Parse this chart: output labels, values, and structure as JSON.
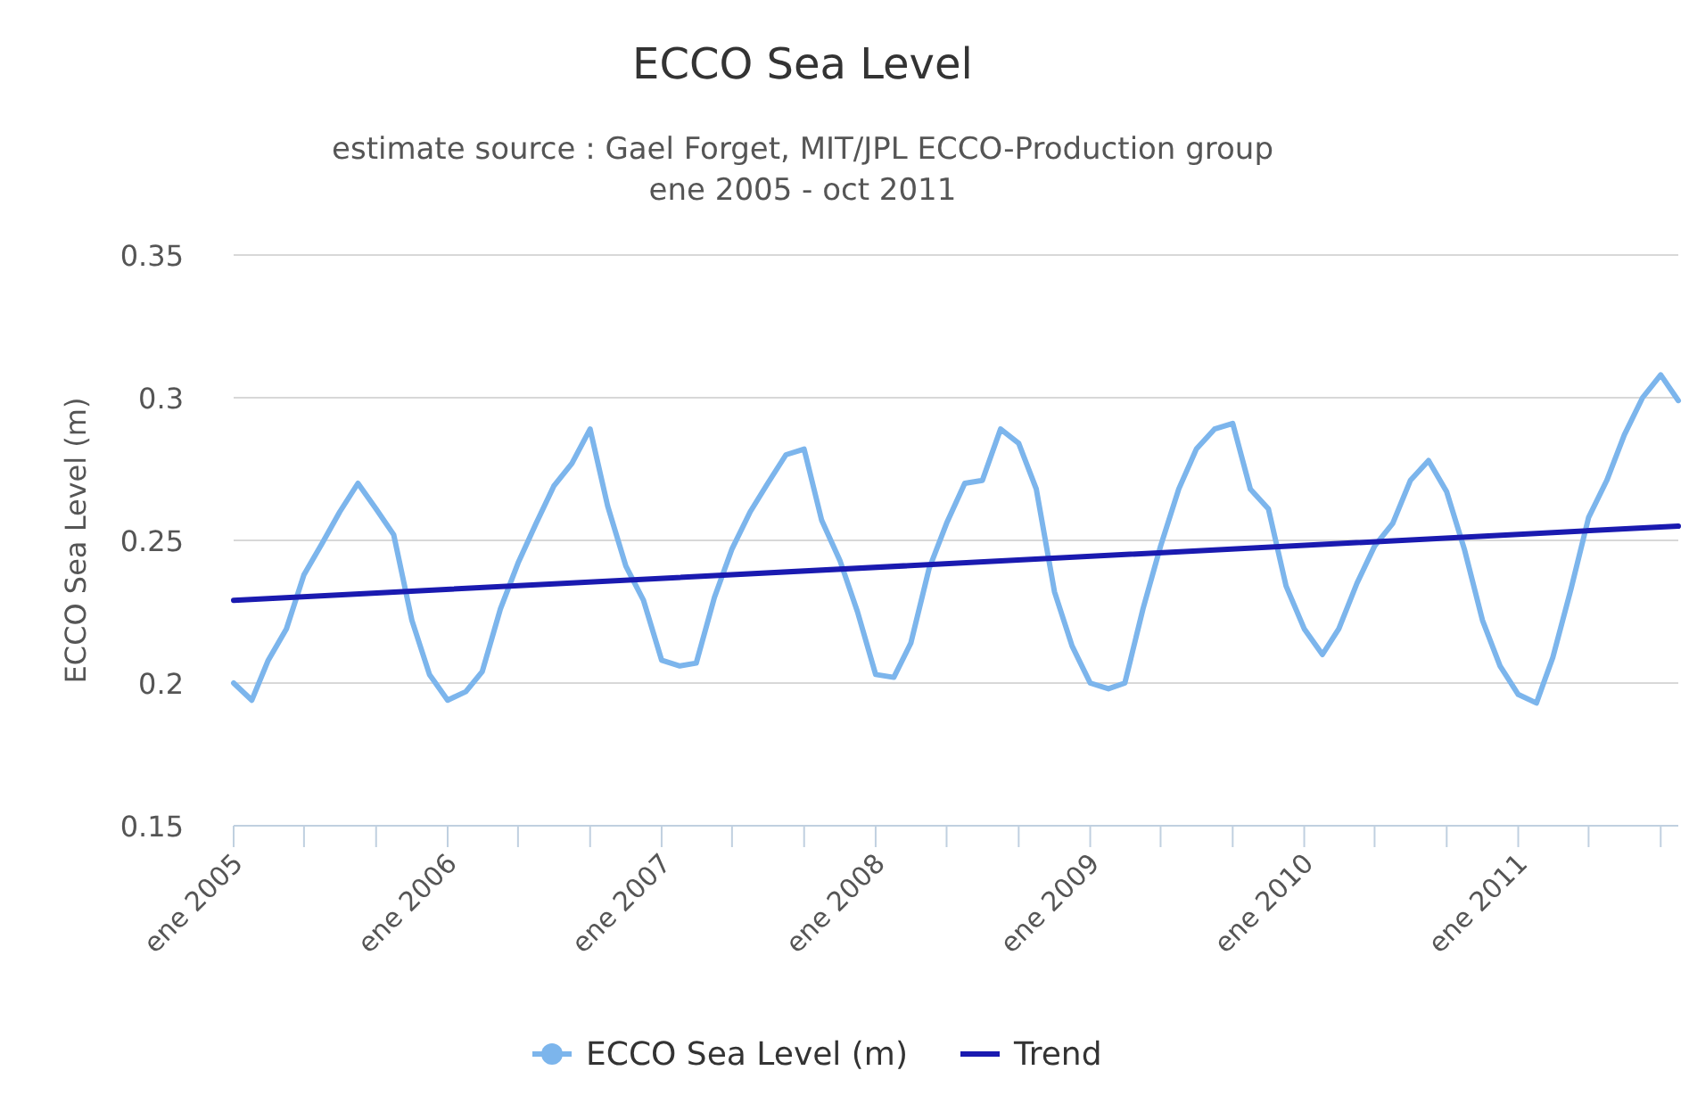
{
  "chart_data": {
    "type": "line",
    "title": "ECCO Sea Level",
    "subtitle": "estimate source : Gael Forget, MIT/JPL ECCO-Production group\nene 2005 - oct 2011",
    "ylabel": "ECCO Sea Level (m)",
    "x": [
      "2005-01",
      "2005-02",
      "2005-03",
      "2005-04",
      "2005-05",
      "2005-06",
      "2005-07",
      "2005-08",
      "2005-09",
      "2005-10",
      "2005-11",
      "2005-12",
      "2006-01",
      "2006-02",
      "2006-03",
      "2006-04",
      "2006-05",
      "2006-06",
      "2006-07",
      "2006-08",
      "2006-09",
      "2006-10",
      "2006-11",
      "2006-12",
      "2007-01",
      "2007-02",
      "2007-03",
      "2007-04",
      "2007-05",
      "2007-06",
      "2007-07",
      "2007-08",
      "2007-09",
      "2007-10",
      "2007-11",
      "2007-12",
      "2008-01",
      "2008-02",
      "2008-03",
      "2008-04",
      "2008-05",
      "2008-06",
      "2008-07",
      "2008-08",
      "2008-09",
      "2008-10",
      "2008-11",
      "2008-12",
      "2009-01",
      "2009-02",
      "2009-03",
      "2009-04",
      "2009-05",
      "2009-06",
      "2009-07",
      "2009-08",
      "2009-09",
      "2009-10",
      "2009-11",
      "2009-12",
      "2010-01",
      "2010-02",
      "2010-03",
      "2010-04",
      "2010-05",
      "2010-06",
      "2010-07",
      "2010-08",
      "2010-09",
      "2010-10",
      "2010-11",
      "2010-12",
      "2011-01",
      "2011-02",
      "2011-03",
      "2011-04",
      "2011-05",
      "2011-06",
      "2011-07",
      "2011-08",
      "2011-09",
      "2011-10"
    ],
    "series": [
      {
        "name": "ECCO Sea Level (m)",
        "color": "#7cb5ec",
        "values": [
          0.2,
          0.194,
          0.208,
          0.219,
          0.238,
          0.249,
          0.26,
          0.27,
          0.261,
          0.252,
          0.222,
          0.203,
          0.194,
          0.197,
          0.204,
          0.226,
          0.242,
          0.256,
          0.269,
          0.277,
          0.289,
          0.262,
          0.241,
          0.229,
          0.208,
          0.206,
          0.207,
          0.23,
          0.247,
          0.26,
          0.27,
          0.28,
          0.282,
          0.257,
          0.243,
          0.225,
          0.203,
          0.202,
          0.214,
          0.24,
          0.256,
          0.27,
          0.271,
          0.289,
          0.284,
          0.268,
          0.232,
          0.213,
          0.2,
          0.198,
          0.2,
          0.226,
          0.248,
          0.268,
          0.282,
          0.289,
          0.291,
          0.268,
          0.261,
          0.234,
          0.219,
          0.21,
          0.219,
          0.235,
          0.248,
          0.256,
          0.271,
          0.278,
          0.267,
          0.247,
          0.222,
          0.206,
          0.196,
          0.193,
          0.209,
          0.233,
          0.258,
          0.271,
          0.287,
          0.3,
          0.308,
          0.299
        ]
      },
      {
        "name": "Trend",
        "color": "#1a1ab0",
        "x": [
          "2005-01",
          "2011-10"
        ],
        "values": [
          0.229,
          0.255
        ]
      }
    ],
    "xlim": [
      "2005-01",
      "2011-10"
    ],
    "xticks": [
      {
        "value": "2005-01",
        "label": "ene 2005"
      },
      {
        "value": "2005-05",
        "label": null
      },
      {
        "value": "2005-09",
        "label": null
      },
      {
        "value": "2006-01",
        "label": "ene 2006"
      },
      {
        "value": "2006-05",
        "label": null
      },
      {
        "value": "2006-09",
        "label": null
      },
      {
        "value": "2007-01",
        "label": "ene 2007"
      },
      {
        "value": "2007-05",
        "label": null
      },
      {
        "value": "2007-09",
        "label": null
      },
      {
        "value": "2008-01",
        "label": "ene 2008"
      },
      {
        "value": "2008-05",
        "label": null
      },
      {
        "value": "2008-09",
        "label": null
      },
      {
        "value": "2009-01",
        "label": "ene 2009"
      },
      {
        "value": "2009-05",
        "label": null
      },
      {
        "value": "2009-09",
        "label": null
      },
      {
        "value": "2010-01",
        "label": "ene 2010"
      },
      {
        "value": "2010-05",
        "label": null
      },
      {
        "value": "2010-09",
        "label": null
      },
      {
        "value": "2011-01",
        "label": "ene 2011"
      },
      {
        "value": "2011-05",
        "label": null
      },
      {
        "value": "2011-09",
        "label": null
      }
    ],
    "ylim": [
      0.15,
      0.35
    ],
    "yticks": [
      0.15,
      0.2,
      0.25,
      0.3,
      0.35
    ],
    "grid": "y",
    "legend": "bottom"
  }
}
